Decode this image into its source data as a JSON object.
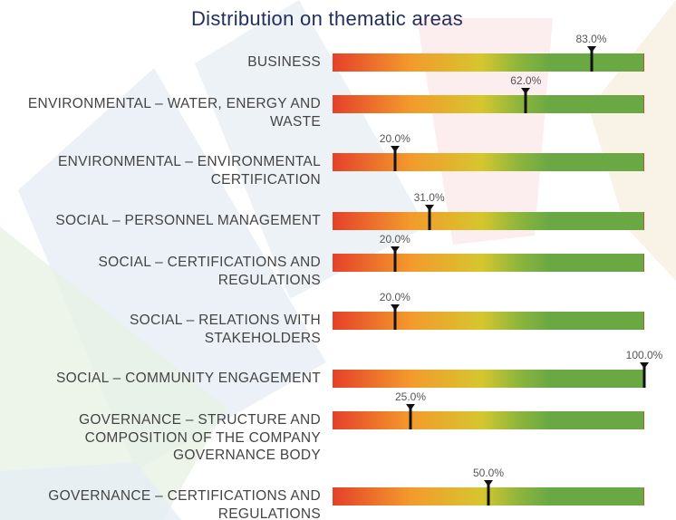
{
  "chart_data": {
    "type": "gauge",
    "title": "Distribution on thematic areas",
    "categories": [
      "BUSINESS",
      "ENVIRONMENTAL – WATER, ENERGY AND\nWASTE",
      "ENVIRONMENTAL – ENVIRONMENTAL\nCERTIFICATION",
      "SOCIAL – PERSONNEL MANAGEMENT",
      "SOCIAL – CERTIFICATIONS AND\nREGULATIONS",
      "SOCIAL – RELATIONS WITH\nSTAKEHOLDERS",
      "SOCIAL – COMMUNITY ENGAGEMENT",
      "GOVERNANCE – STRUCTURE AND\nCOMPOSITION OF THE COMPANY\nGOVERNANCE BODY",
      "GOVERNANCE – CERTIFICATIONS AND\nREGULATIONS"
    ],
    "values": [
      83,
      62,
      20,
      31,
      20,
      20,
      100,
      25,
      50
    ],
    "value_labels": [
      "83.0%",
      "62.0%",
      "20.0%",
      "31.0%",
      "20.0%",
      "20.0%",
      "100.0%",
      "25.0%",
      "50.0%"
    ],
    "xlim": [
      0,
      100
    ]
  }
}
